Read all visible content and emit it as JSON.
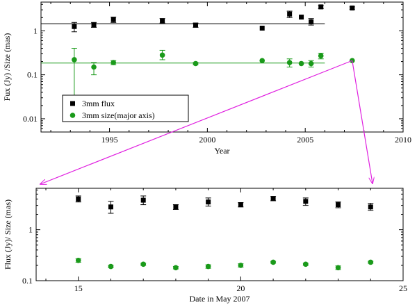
{
  "colors": {
    "flux": "#000000",
    "size": "#1a9a1a",
    "arrow": "#e020e0",
    "axis": "#000000"
  },
  "chart_data": [
    {
      "type": "scatter",
      "xlabel": "Year",
      "ylabel": "Fux (Jy) /Size (mas)",
      "xlim": [
        1991.5,
        2010
      ],
      "ylim": [
        0.005,
        4.5
      ],
      "yscale": "log",
      "xticks": [
        1995,
        2000,
        2005,
        2010
      ],
      "xtick_labels": [
        "1995",
        "2000",
        "2005",
        "2010"
      ],
      "yticks": [
        0.01,
        0.1,
        1
      ],
      "ytick_labels": [
        "0.01",
        "0.1",
        "1"
      ],
      "grid": false,
      "legend_position": "bottom-left",
      "series": [
        {
          "name": "3mm flux",
          "marker": "square",
          "color_key": "flux",
          "points": [
            {
              "x": 1993.2,
              "y": 1.25,
              "err_lo": 0.95,
              "err_hi": 1.55
            },
            {
              "x": 1994.2,
              "y": 1.35,
              "err_lo": 1.2,
              "err_hi": 1.55
            },
            {
              "x": 1995.2,
              "y": 1.8,
              "err_lo": 1.55,
              "err_hi": 2.05
            },
            {
              "x": 1997.7,
              "y": 1.7,
              "err_lo": 1.5,
              "err_hi": 1.9
            },
            {
              "x": 1999.4,
              "y": 1.35,
              "err_lo": 1.2,
              "err_hi": 1.5
            },
            {
              "x": 2002.8,
              "y": 1.15
            },
            {
              "x": 2004.2,
              "y": 2.4,
              "err_lo": 2.0,
              "err_hi": 2.8
            },
            {
              "x": 2004.8,
              "y": 2.05
            },
            {
              "x": 2005.3,
              "y": 1.6,
              "err_lo": 1.35,
              "err_hi": 1.9
            },
            {
              "x": 2005.8,
              "y": 3.5,
              "err_lo": 3.2,
              "err_hi": 3.8
            },
            {
              "x": 2007.4,
              "y": 3.3,
              "err_lo": 3.1,
              "err_hi": 3.5
            }
          ],
          "fit": {
            "x0": 1991.5,
            "x1": 2006.0,
            "y": 1.45
          }
        },
        {
          "name": "3mm size(major axis)",
          "marker": "circle",
          "color_key": "size",
          "points": [
            {
              "x": 1993.2,
              "y": 0.22,
              "err_lo": 0.03,
              "err_hi": 0.4
            },
            {
              "x": 1994.2,
              "y": 0.15,
              "err_lo": 0.1,
              "err_hi": 0.19
            },
            {
              "x": 1995.2,
              "y": 0.19,
              "err_lo": 0.17,
              "err_hi": 0.21
            },
            {
              "x": 1997.7,
              "y": 0.28,
              "err_lo": 0.22,
              "err_hi": 0.36
            },
            {
              "x": 1999.4,
              "y": 0.18,
              "err_lo": 0.17,
              "err_hi": 0.19
            },
            {
              "x": 2002.8,
              "y": 0.21
            },
            {
              "x": 2004.2,
              "y": 0.19,
              "err_lo": 0.15,
              "err_hi": 0.23
            },
            {
              "x": 2004.8,
              "y": 0.18
            },
            {
              "x": 2005.3,
              "y": 0.18,
              "err_lo": 0.15,
              "err_hi": 0.21
            },
            {
              "x": 2005.8,
              "y": 0.27,
              "err_lo": 0.23,
              "err_hi": 0.31
            },
            {
              "x": 2007.4,
              "y": 0.21
            }
          ],
          "fit": {
            "x0": 1991.5,
            "x1": 2006.0,
            "y": 0.185
          }
        }
      ]
    },
    {
      "type": "scatter",
      "xlabel": "Date in May 2007",
      "ylabel": "Flux (Jy)/ Size (mas)",
      "xlim": [
        13.7,
        25
      ],
      "ylim": [
        0.1,
        6.5
      ],
      "yscale": "log",
      "xticks": [
        15,
        20,
        25
      ],
      "xtick_labels": [
        "15",
        "20",
        "25"
      ],
      "yticks": [
        0.1,
        1
      ],
      "ytick_labels": [
        "0.1",
        "1"
      ],
      "grid": false,
      "series": [
        {
          "name": "",
          "marker": "square",
          "color_key": "flux",
          "points": [
            {
              "x": 15,
              "y": 4.0,
              "err_lo": 3.5,
              "err_hi": 4.6
            },
            {
              "x": 16,
              "y": 2.8,
              "err_lo": 2.1,
              "err_hi": 3.6
            },
            {
              "x": 17,
              "y": 3.8,
              "err_lo": 3.1,
              "err_hi": 4.6
            },
            {
              "x": 18,
              "y": 2.8,
              "err_lo": 2.5,
              "err_hi": 3.1
            },
            {
              "x": 19,
              "y": 3.5,
              "err_lo": 2.9,
              "err_hi": 4.2
            },
            {
              "x": 20,
              "y": 3.1,
              "err_lo": 2.8,
              "err_hi": 3.4
            },
            {
              "x": 21,
              "y": 4.1,
              "err_lo": 3.7,
              "err_hi": 4.5
            },
            {
              "x": 22,
              "y": 3.6,
              "err_lo": 3.0,
              "err_hi": 4.2
            },
            {
              "x": 23,
              "y": 3.1,
              "err_lo": 2.7,
              "err_hi": 3.5
            },
            {
              "x": 24,
              "y": 2.8,
              "err_lo": 2.4,
              "err_hi": 3.3
            }
          ]
        },
        {
          "name": "",
          "marker": "circle",
          "color_key": "size",
          "points": [
            {
              "x": 15,
              "y": 0.25,
              "err_lo": 0.23,
              "err_hi": 0.27
            },
            {
              "x": 16,
              "y": 0.19,
              "err_lo": 0.18,
              "err_hi": 0.2
            },
            {
              "x": 17,
              "y": 0.21,
              "err_lo": 0.2,
              "err_hi": 0.22
            },
            {
              "x": 18,
              "y": 0.18,
              "err_lo": 0.17,
              "err_hi": 0.19
            },
            {
              "x": 19,
              "y": 0.19,
              "err_lo": 0.175,
              "err_hi": 0.205
            },
            {
              "x": 20,
              "y": 0.2,
              "err_lo": 0.185,
              "err_hi": 0.215
            },
            {
              "x": 21,
              "y": 0.23,
              "err_lo": 0.22,
              "err_hi": 0.24
            },
            {
              "x": 22,
              "y": 0.21,
              "err_lo": 0.2,
              "err_hi": 0.22
            },
            {
              "x": 23,
              "y": 0.18,
              "err_lo": 0.165,
              "err_hi": 0.195
            },
            {
              "x": 24,
              "y": 0.23,
              "err_lo": 0.22,
              "err_hi": 0.24
            }
          ]
        }
      ]
    }
  ]
}
